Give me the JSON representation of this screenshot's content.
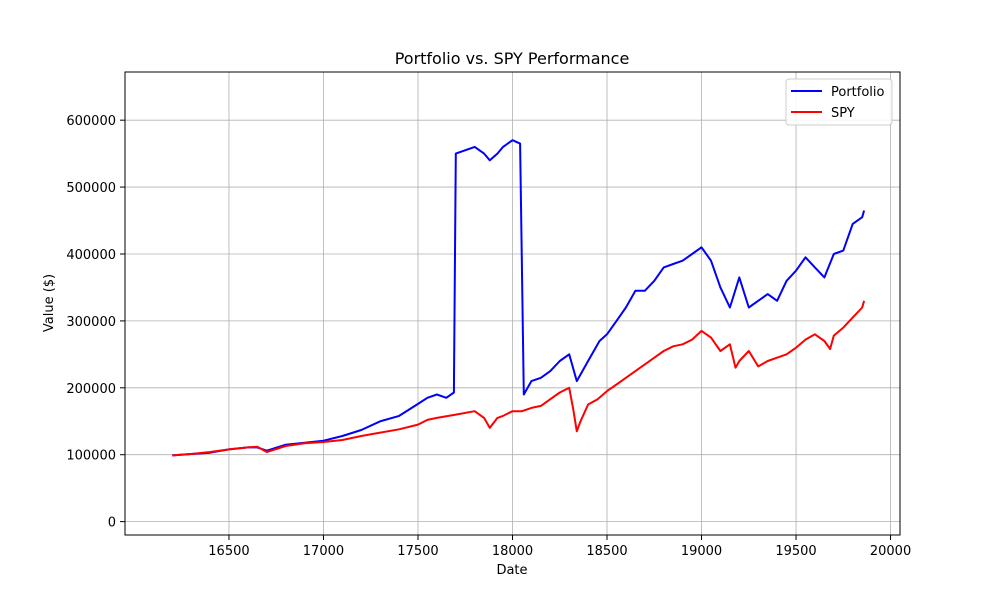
{
  "chart_data": {
    "type": "line",
    "title": "Portfolio vs. SPY Performance",
    "xlabel": "Date",
    "ylabel": "Value ($)",
    "xlim": [
      15950,
      20050
    ],
    "ylim": [
      -20000,
      672000
    ],
    "xticks": [
      16500,
      17000,
      17500,
      18000,
      18500,
      19000,
      19500,
      20000
    ],
    "yticks": [
      0,
      100000,
      200000,
      300000,
      400000,
      500000,
      600000
    ],
    "grid": true,
    "legend_position": "top-right",
    "series": [
      {
        "name": "Portfolio",
        "color": "#0000ff",
        "x": [
          16200,
          16300,
          16400,
          16500,
          16600,
          16650,
          16700,
          16800,
          16900,
          17000,
          17100,
          17200,
          17300,
          17400,
          17500,
          17550,
          17600,
          17650,
          17690,
          17700,
          17800,
          17850,
          17880,
          17920,
          17950,
          18000,
          18040,
          18060,
          18100,
          18150,
          18200,
          18250,
          18300,
          18340,
          18400,
          18460,
          18500,
          18550,
          18600,
          18650,
          18700,
          18750,
          18800,
          18850,
          18900,
          18950,
          19000,
          19050,
          19100,
          19150,
          19200,
          19250,
          19300,
          19350,
          19400,
          19450,
          19500,
          19550,
          19600,
          19650,
          19700,
          19750,
          19800,
          19850,
          19860
        ],
        "values": [
          99000,
          101000,
          103000,
          108000,
          111000,
          111000,
          106000,
          115000,
          118000,
          121000,
          128000,
          137000,
          150000,
          158000,
          176000,
          185000,
          190000,
          185000,
          193000,
          550000,
          560000,
          550000,
          540000,
          550000,
          560000,
          570000,
          565000,
          190000,
          210000,
          215000,
          225000,
          240000,
          250000,
          210000,
          240000,
          270000,
          280000,
          300000,
          320000,
          345000,
          345000,
          360000,
          380000,
          385000,
          390000,
          400000,
          410000,
          390000,
          350000,
          320000,
          365000,
          320000,
          330000,
          340000,
          330000,
          360000,
          375000,
          395000,
          380000,
          365000,
          400000,
          405000,
          445000,
          455000,
          465000
        ]
      },
      {
        "name": "SPY",
        "color": "#ff0000",
        "x": [
          16200,
          16300,
          16400,
          16500,
          16600,
          16650,
          16700,
          16800,
          16900,
          17000,
          17100,
          17200,
          17300,
          17400,
          17500,
          17550,
          17600,
          17700,
          17800,
          17850,
          17880,
          17920,
          17950,
          18000,
          18050,
          18100,
          18150,
          18200,
          18250,
          18300,
          18320,
          18340,
          18360,
          18400,
          18450,
          18500,
          18550,
          18600,
          18650,
          18700,
          18750,
          18800,
          18850,
          18900,
          18950,
          19000,
          19050,
          19100,
          19150,
          19180,
          19200,
          19250,
          19300,
          19350,
          19400,
          19450,
          19500,
          19550,
          19600,
          19650,
          19680,
          19700,
          19750,
          19800,
          19850,
          19860
        ],
        "values": [
          99000,
          101000,
          104000,
          108000,
          111000,
          112000,
          104000,
          113000,
          117000,
          119000,
          122000,
          128000,
          133000,
          138000,
          145000,
          152000,
          155000,
          160000,
          165000,
          155000,
          140000,
          155000,
          158000,
          165000,
          165000,
          170000,
          173000,
          183000,
          193000,
          200000,
          170000,
          135000,
          150000,
          175000,
          183000,
          195000,
          205000,
          215000,
          225000,
          235000,
          245000,
          255000,
          262000,
          265000,
          272000,
          285000,
          275000,
          255000,
          265000,
          230000,
          240000,
          255000,
          232000,
          240000,
          245000,
          250000,
          260000,
          272000,
          280000,
          270000,
          258000,
          278000,
          290000,
          305000,
          320000,
          330000
        ]
      }
    ]
  }
}
